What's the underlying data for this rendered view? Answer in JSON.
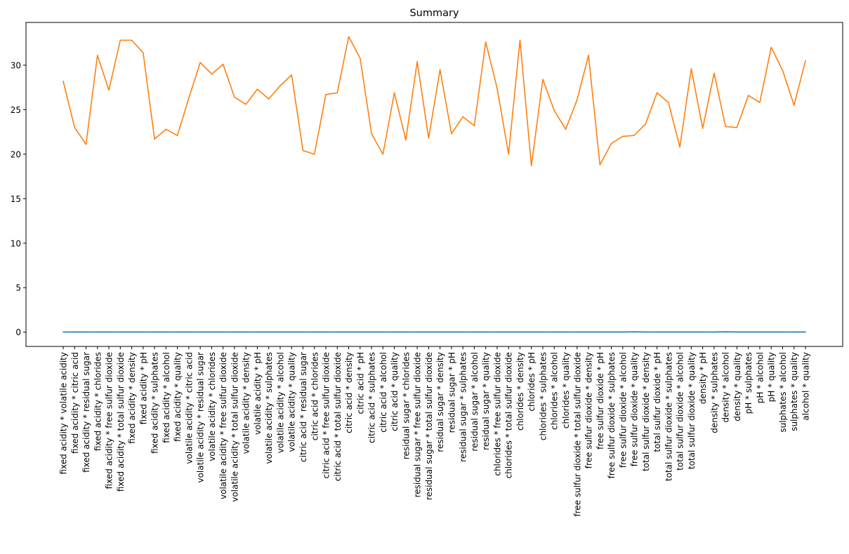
{
  "chart_data": {
    "type": "line",
    "title": "Summary",
    "xlabel": "",
    "ylabel": "",
    "ylim": [
      -1.6,
      34.8
    ],
    "yticks": [
      0,
      5,
      10,
      15,
      20,
      25,
      30
    ],
    "grid": false,
    "categories": [
      "fixed acidity * volatile acidity",
      "fixed acidity * citric acid",
      "fixed acidity * residual sugar",
      "fixed acidity * chlorides",
      "fixed acidity * free sulfur dioxide",
      "fixed acidity * total sulfur dioxide",
      "fixed acidity * density",
      "fixed acidity * pH",
      "fixed acidity * sulphates",
      "fixed acidity * alcohol",
      "fixed acidity * quality",
      "volatile acidity * citric acid",
      "volatile acidity * residual sugar",
      "volatile acidity * chlorides",
      "volatile acidity * free sulfur dioxide",
      "volatile acidity * total sulfur dioxide",
      "volatile acidity * density",
      "volatile acidity * pH",
      "volatile acidity * sulphates",
      "volatile acidity * alcohol",
      "volatile acidity * quality",
      "citric acid * residual sugar",
      "citric acid * chlorides",
      "citric acid * free sulfur dioxide",
      "citric acid * total sulfur dioxide",
      "citric acid * density",
      "citric acid * pH",
      "citric acid * sulphates",
      "citric acid * alcohol",
      "citric acid * quality",
      "residual sugar * chlorides",
      "residual sugar * free sulfur dioxide",
      "residual sugar * total sulfur dioxide",
      "residual sugar * density",
      "residual sugar * pH",
      "residual sugar * sulphates",
      "residual sugar * alcohol",
      "residual sugar * quality",
      "chlorides * free sulfur dioxide",
      "chlorides * total sulfur dioxide",
      "chlorides * density",
      "chlorides * pH",
      "chlorides * sulphates",
      "chlorides * alcohol",
      "chlorides * quality",
      "free sulfur dioxide * total sulfur dioxide",
      "free sulfur dioxide * density",
      "free sulfur dioxide * pH",
      "free sulfur dioxide * sulphates",
      "free sulfur dioxide * alcohol",
      "free sulfur dioxide * quality",
      "total sulfur dioxide * density",
      "total sulfur dioxide * pH",
      "total sulfur dioxide * sulphates",
      "total sulfur dioxide * alcohol",
      "total sulfur dioxide * quality",
      "density * pH",
      "density * sulphates",
      "density * alcohol",
      "density * quality",
      "pH * sulphates",
      "pH * alcohol",
      "pH * quality",
      "sulphates * alcohol",
      "sulphates * quality",
      "alcohol * quality"
    ],
    "series": [
      {
        "color": "#1f77b4",
        "values": [
          0.02,
          0.02,
          0.02,
          0.02,
          0.02,
          0.02,
          0.02,
          0.02,
          0.02,
          0.02,
          0.02,
          0.02,
          0.02,
          0.02,
          0.02,
          0.02,
          0.02,
          0.02,
          0.02,
          0.02,
          0.02,
          0.02,
          0.02,
          0.02,
          0.02,
          0.02,
          0.02,
          0.02,
          0.02,
          0.02,
          0.02,
          0.02,
          0.02,
          0.02,
          0.02,
          0.02,
          0.02,
          0.02,
          0.02,
          0.02,
          0.02,
          0.02,
          0.02,
          0.02,
          0.02,
          0.02,
          0.02,
          0.02,
          0.02,
          0.02,
          0.04,
          0.02,
          0.02,
          0.02,
          0.02,
          0.02,
          0.02,
          0.02,
          0.04,
          0.02,
          0.02,
          0.02,
          0.02,
          0.02,
          0.02,
          0.02
        ]
      },
      {
        "color": "#ff7f0e",
        "values": [
          28.2,
          23.0,
          21.1,
          31.1,
          27.2,
          32.8,
          32.8,
          31.4,
          21.7,
          22.8,
          22.1,
          26.3,
          30.3,
          29.0,
          30.1,
          26.4,
          25.6,
          27.3,
          26.2,
          27.7,
          28.9,
          20.4,
          20.0,
          26.7,
          26.9,
          33.2,
          30.8,
          22.3,
          20.0,
          26.9,
          21.6,
          30.4,
          21.8,
          29.5,
          22.3,
          24.2,
          23.2,
          32.6,
          27.4,
          20.0,
          32.8,
          18.7,
          28.4,
          24.9,
          22.8,
          26.1,
          31.1,
          18.8,
          21.2,
          22.0,
          22.1,
          23.4,
          26.9,
          25.8,
          20.8,
          29.6,
          22.9,
          29.1,
          23.1,
          23.0,
          26.6,
          25.8,
          32.0,
          29.4,
          25.5,
          30.5
        ]
      }
    ]
  }
}
